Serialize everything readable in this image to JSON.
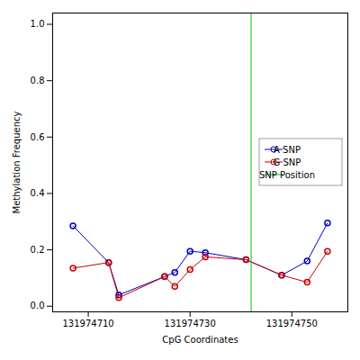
{
  "chart_data": {
    "type": "line",
    "xlabel": "CpG Coordinates",
    "ylabel": "Methylation Frequency",
    "x": [
      131974707,
      131974714,
      131974716,
      131974725,
      131974727,
      131974730,
      131974733,
      131974741,
      131974748,
      131974753,
      131974757
    ],
    "series": [
      {
        "name": "A SNP",
        "color": "#0000cc",
        "values": [
          0.285,
          0.155,
          0.04,
          0.105,
          0.12,
          0.195,
          0.19,
          0.165,
          0.11,
          0.16,
          0.295
        ]
      },
      {
        "name": "G SNP",
        "color": "#cc0000",
        "values": [
          0.135,
          0.155,
          0.03,
          0.105,
          0.07,
          0.13,
          0.175,
          0.165,
          0.11,
          0.085,
          0.195
        ]
      },
      {
        "name": "SNP Position",
        "color": "#00cc00",
        "type": "vline",
        "x": 131974742
      }
    ],
    "marker": "circle",
    "xlim": [
      131974703,
      131974761
    ],
    "ylim": [
      -0.02,
      1.04
    ],
    "xticks": [
      131974710,
      131974730,
      131974750
    ],
    "yticks": [
      {
        "value": 0.0,
        "label": "0.0"
      },
      0.2,
      0.4,
      0.6,
      0.8,
      {
        "value": 1.0,
        "label": "1.0"
      }
    ],
    "grid": false,
    "legend": "center right"
  }
}
